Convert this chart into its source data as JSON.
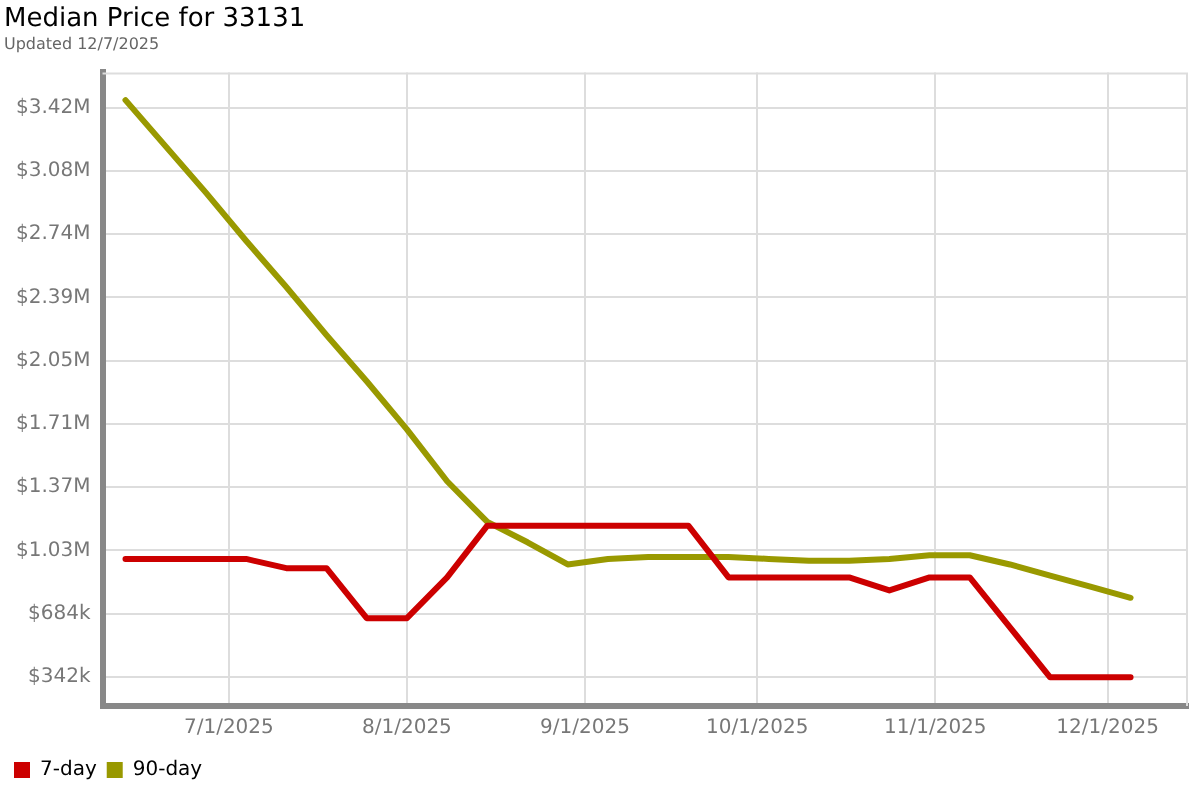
{
  "chart_data": {
    "type": "line",
    "title": "Median Price for 33131",
    "subtitle": "Updated 12/7/2025",
    "x": [
      "2025-06-13",
      "2025-06-20",
      "2025-06-27",
      "2025-07-04",
      "2025-07-11",
      "2025-07-18",
      "2025-07-25",
      "2025-08-01",
      "2025-08-08",
      "2025-08-15",
      "2025-08-22",
      "2025-08-29",
      "2025-09-05",
      "2025-09-12",
      "2025-09-19",
      "2025-09-26",
      "2025-10-03",
      "2025-10-10",
      "2025-10-17",
      "2025-10-24",
      "2025-10-31",
      "2025-11-07",
      "2025-11-14",
      "2025-11-21",
      "2025-11-28",
      "2025-12-05"
    ],
    "series": [
      {
        "name": "7-day",
        "color": "#cc0000",
        "values": [
          980000,
          980000,
          980000,
          980000,
          930000,
          930000,
          660000,
          660000,
          880000,
          1160000,
          1160000,
          1160000,
          1160000,
          1160000,
          1160000,
          880000,
          880000,
          880000,
          880000,
          810000,
          880000,
          880000,
          610000,
          340000,
          340000,
          340000
        ]
      },
      {
        "name": "90-day",
        "color": "#999900",
        "values": [
          3460000,
          3210000,
          2960000,
          2700000,
          2450000,
          2190000,
          1940000,
          1680000,
          1400000,
          1180000,
          1070000,
          950000,
          980000,
          990000,
          990000,
          990000,
          980000,
          970000,
          970000,
          980000,
          1000000,
          1000000,
          950000,
          890000,
          830000,
          770000
        ]
      }
    ],
    "xlim": [
      "2025-06-09",
      "2025-12-15"
    ],
    "xticks": [
      {
        "value": "2025-07-01",
        "label": "7/1/2025"
      },
      {
        "value": "2025-08-01",
        "label": "8/1/2025"
      },
      {
        "value": "2025-09-01",
        "label": "9/1/2025"
      },
      {
        "value": "2025-10-01",
        "label": "10/1/2025"
      },
      {
        "value": "2025-11-01",
        "label": "11/1/2025"
      },
      {
        "value": "2025-12-01",
        "label": "12/1/2025"
      }
    ],
    "ylim": [
      185000,
      3610000
    ],
    "yticks": [
      {
        "value": 342000,
        "label": "$342k"
      },
      {
        "value": 684000,
        "label": "$684k"
      },
      {
        "value": 1026000,
        "label": "$1.03M"
      },
      {
        "value": 1368000,
        "label": "$1.37M"
      },
      {
        "value": 1710000,
        "label": "$1.71M"
      },
      {
        "value": 2052000,
        "label": "$2.05M"
      },
      {
        "value": 2394000,
        "label": "$2.39M"
      },
      {
        "value": 2736000,
        "label": "$2.74M"
      },
      {
        "value": 3078000,
        "label": "$3.08M"
      },
      {
        "value": 3420000,
        "label": "$3.42M"
      }
    ],
    "grid": true,
    "legend": "bottom left",
    "marker": "none"
  }
}
